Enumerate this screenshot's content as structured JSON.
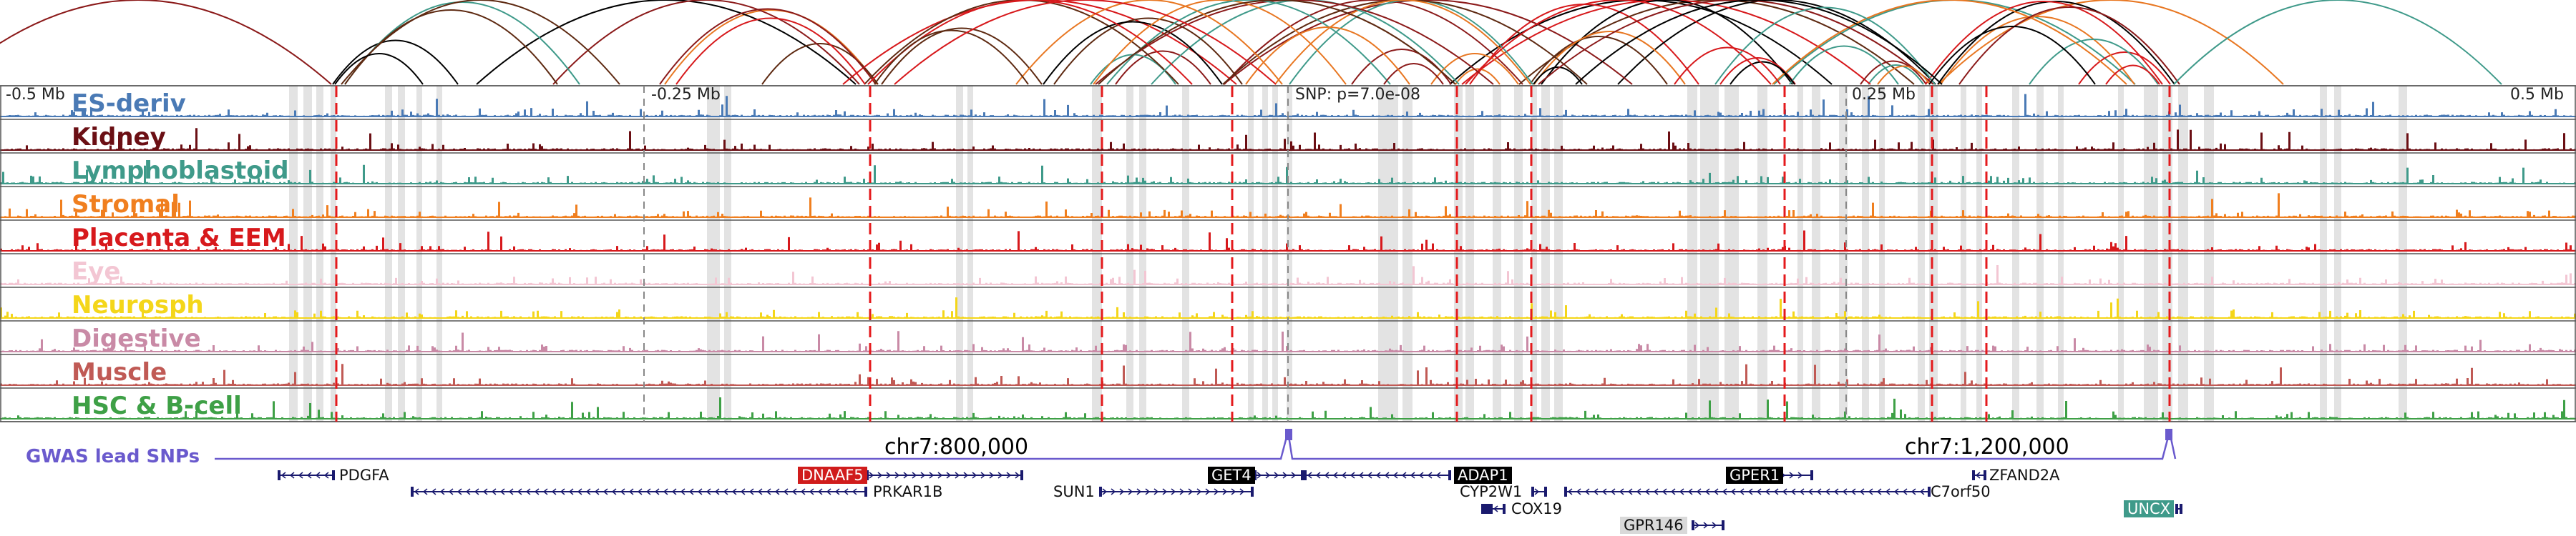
{
  "axis": {
    "left_label": "-0.5 Mb",
    "tick2_label": "-0.25 Mb",
    "snp_label": "SNP: p=7.0e-08",
    "tick4_label": "0.25 Mb",
    "right_label": "0.5 Mb"
  },
  "tracks": [
    {
      "name": "ES-deriv",
      "color": "#4a7ab5"
    },
    {
      "name": "Kidney",
      "color": "#6b0f14"
    },
    {
      "name": "Lymphoblastoid",
      "color": "#3f9a8a"
    },
    {
      "name": "Stromal",
      "color": "#f07f1f"
    },
    {
      "name": "Placenta & EEM",
      "color": "#d7191c"
    },
    {
      "name": "Eye",
      "color": "#f3c6d3"
    },
    {
      "name": "Neurosph",
      "color": "#f4d61a"
    },
    {
      "name": "Digestive",
      "color": "#c98aa6"
    },
    {
      "name": "Muscle",
      "color": "#c05a55"
    },
    {
      "name": "HSC & B-cell",
      "color": "#3ea046"
    }
  ],
  "snp_track": {
    "label": "GWAS lead SNPs",
    "color": "#6a5acd"
  },
  "chromosome_labels": [
    "chr7:800,000",
    "chr7:1,200,000"
  ],
  "genes": [
    {
      "name": "PDGFA",
      "strand": "-",
      "highlight": null
    },
    {
      "name": "DNAAF5",
      "strand": "+",
      "highlight": "#d01c1c"
    },
    {
      "name": "PRKAR1B",
      "strand": "-",
      "highlight": null
    },
    {
      "name": "SUN1",
      "strand": "+",
      "highlight": null
    },
    {
      "name": "GET4",
      "strand": "+",
      "highlight": "#000000"
    },
    {
      "name": "ADAP1",
      "strand": "-",
      "highlight": "#000000"
    },
    {
      "name": "CYP2W1",
      "strand": "+",
      "highlight": null
    },
    {
      "name": "COX19",
      "strand": "-",
      "highlight": null
    },
    {
      "name": "GPR146",
      "strand": "+",
      "highlight": "#d9d9d9"
    },
    {
      "name": "GPER1",
      "strand": "+",
      "highlight": "#000000"
    },
    {
      "name": "C7orf50",
      "strand": "-",
      "highlight": null
    },
    {
      "name": "ZFAND2A",
      "strand": "-",
      "highlight": null
    },
    {
      "name": "UNCX",
      "strand": "+",
      "highlight": "#3f9a8a"
    }
  ],
  "colors": {
    "enhancer_highlight": "#d9d9d9",
    "snp_marker": "#e41a1c",
    "arc_palette": [
      "#8b1a1a",
      "#e87722",
      "#000000",
      "#d7191c",
      "#3f9a8a",
      "#5e2a12"
    ]
  }
}
